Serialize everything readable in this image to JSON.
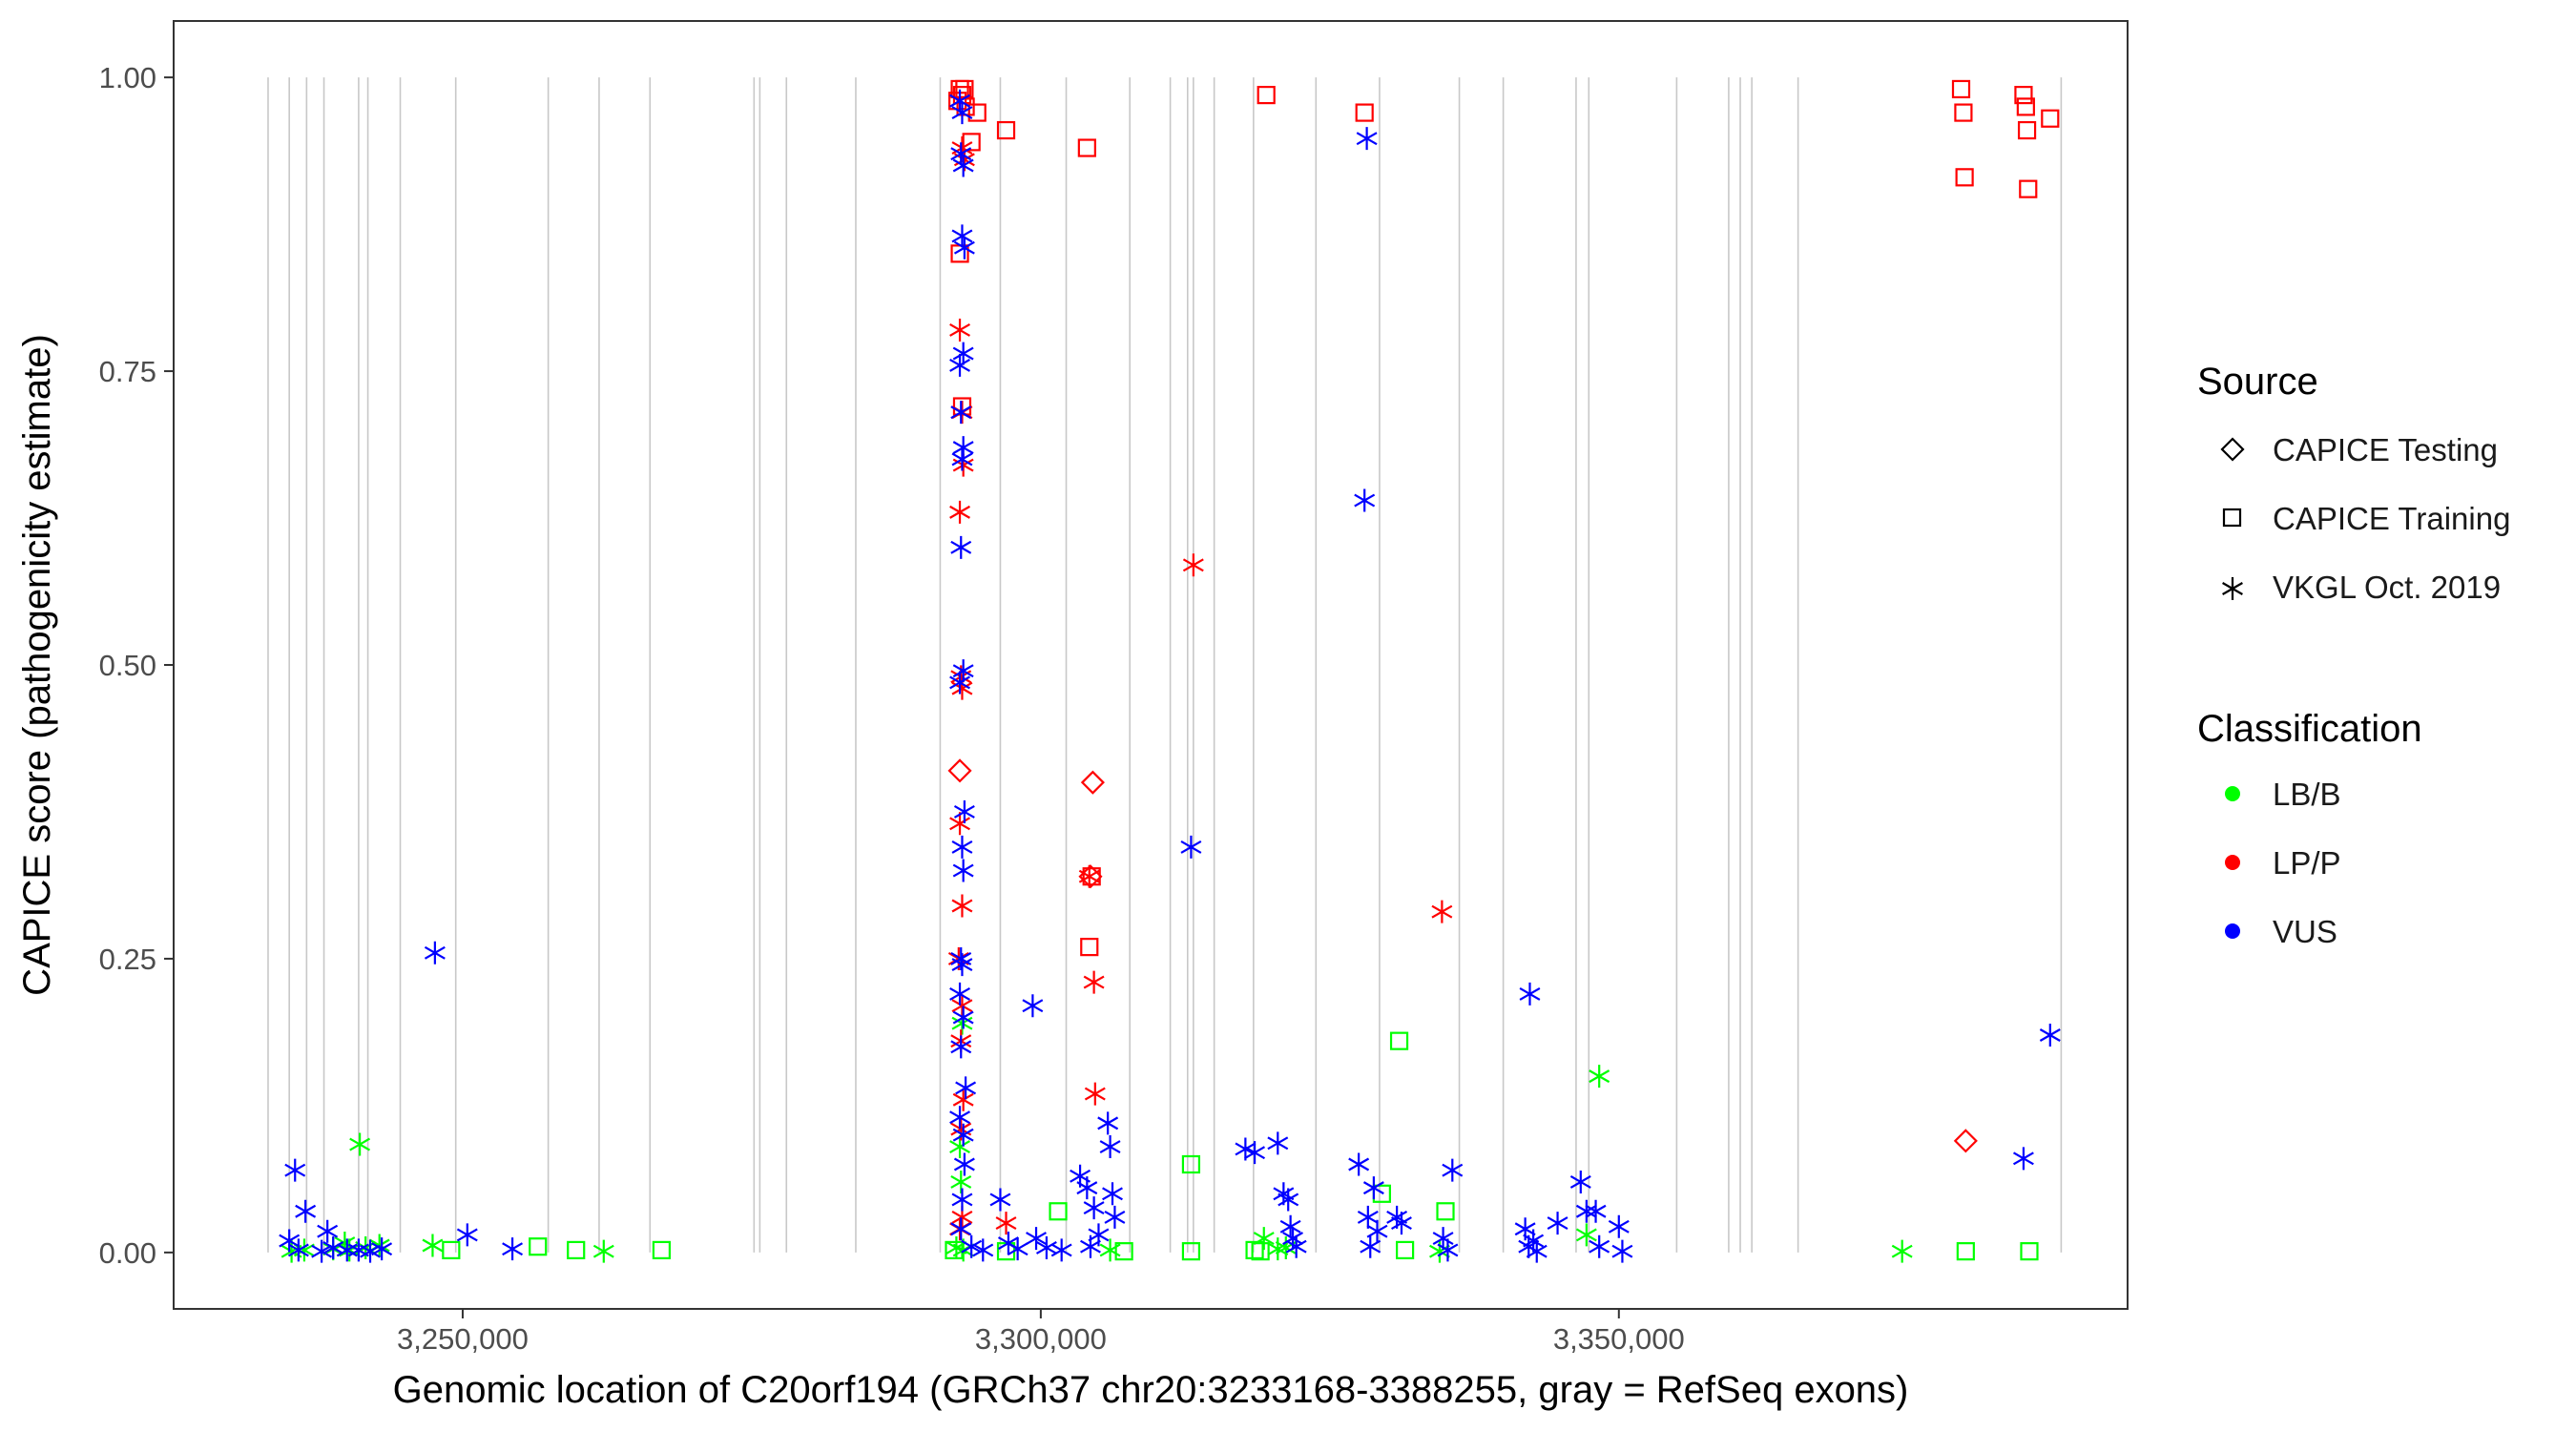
{
  "chart_data": {
    "type": "scatter",
    "title": "",
    "xlabel": "Genomic location of C20orf194 (GRCh37 chr20:3233168-3388255, gray = RefSeq exons)",
    "ylabel": "CAPICE score (pathogenicity estimate)",
    "xlim": [
      3225000,
      3394000
    ],
    "ylim": [
      -0.048,
      1.048
    ],
    "x_ticks": [
      3250000,
      3300000,
      3350000
    ],
    "x_tick_labels": [
      "3,250,000",
      "3,300,000",
      "3,350,000"
    ],
    "y_ticks": [
      0,
      0.25,
      0.5,
      0.75,
      1.0
    ],
    "y_tick_labels": [
      "0.00",
      "0.25",
      "0.50",
      "0.75",
      "1.00"
    ],
    "grid": false,
    "exons": [
      3233168,
      3235000,
      3236500,
      3238000,
      3241000,
      3241800,
      3244600,
      3249400,
      3257400,
      3261800,
      3266200,
      3275200,
      3275700,
      3278000,
      3284000,
      3291300,
      3296500,
      3302200,
      3307700,
      3311200,
      3312700,
      3313200,
      3315000,
      3318400,
      3323800,
      3329300,
      3336200,
      3340000,
      3346300,
      3347400,
      3355000,
      3359500,
      3360500,
      3361500,
      3365500,
      3388255
    ],
    "legend": {
      "position": "right",
      "source_title": "Source",
      "source_items": [
        {
          "label": "CAPICE Testing",
          "shape": "diamond"
        },
        {
          "label": "CAPICE Training",
          "shape": "square"
        },
        {
          "label": "VKGL Oct. 2019",
          "shape": "asterisk"
        }
      ],
      "class_title": "Classification",
      "class_items": [
        {
          "label": "LB/B",
          "color": "#00FF00"
        },
        {
          "label": "LP/P",
          "color": "#FF0000"
        },
        {
          "label": "VUS",
          "color": "#0000FF"
        }
      ]
    },
    "colors": {
      "LB/B": "#00FF00",
      "LP/P": "#FF0000",
      "VUS": "#0000FF"
    },
    "series": [
      {
        "source": "CAPICE Testing",
        "classification": "LP/P",
        "x": [
          3293000,
          3304500,
          3304300,
          3380000
        ],
        "y": [
          0.41,
          0.4,
          0.32,
          0.095
        ]
      },
      {
        "source": "CAPICE Training",
        "classification": "LP/P",
        "x": [
          3292800,
          3293000,
          3293200,
          3293400,
          3293500,
          3294000,
          3294500,
          3297000,
          3304000,
          3304200,
          3304400,
          3319500,
          3328000,
          3293000,
          3293200,
          3379600,
          3379800,
          3379900,
          3385000,
          3385200,
          3385300,
          3385400,
          3387300
        ],
        "y": [
          0.98,
          0.99,
          0.985,
          0.99,
          0.975,
          0.945,
          0.97,
          0.955,
          0.94,
          0.26,
          0.32,
          0.985,
          0.97,
          0.85,
          0.72,
          0.99,
          0.97,
          0.915,
          0.985,
          0.975,
          0.955,
          0.905,
          0.965
        ]
      },
      {
        "source": "CAPICE Training",
        "classification": "LB/B",
        "x": [
          3249000,
          3256500,
          3259800,
          3267200,
          3301500,
          3307200,
          3313000,
          3319000,
          3329500,
          3331000,
          3335000,
          3380000,
          3385500,
          3292500,
          3297000,
          3313000,
          3318500,
          3331500
        ],
        "y": [
          0.002,
          0.005,
          0.002,
          0.002,
          0.035,
          0.001,
          0.075,
          0.001,
          0.05,
          0.18,
          0.035,
          0.001,
          0.001,
          0.002,
          0.001,
          0.001,
          0.002,
          0.002
        ]
      },
      {
        "source": "VKGL Oct. 2019",
        "classification": "LB/B",
        "x": [
          3235200,
          3236300,
          3238800,
          3240200,
          3241100,
          3242800,
          3247400,
          3262200,
          3293000,
          3293200,
          3306000,
          3319300,
          3320500,
          3321200,
          3334500,
          3347200,
          3348300,
          3374500,
          3292700,
          3293100,
          3293300,
          3239800,
          3241600
        ],
        "y": [
          0.001,
          0.002,
          0.003,
          0.002,
          0.092,
          0.006,
          0.006,
          0.001,
          0.09,
          0.195,
          0.002,
          0.012,
          0.003,
          0.004,
          0.001,
          0.015,
          0.15,
          0.001,
          0.004,
          0.06,
          0.002,
          0.008,
          0.004
        ]
      },
      {
        "source": "VKGL Oct. 2019",
        "classification": "LP/P",
        "x": [
          3293000,
          3293200,
          3293300,
          3293000,
          3293100,
          3293200,
          3293000,
          3293200,
          3292900,
          3293200,
          3293100,
          3293300,
          3293100,
          3293200,
          3293000,
          3293400,
          3293200,
          3297000,
          3304200,
          3304600,
          3304700,
          3313200,
          3334700
        ],
        "y": [
          0.785,
          0.715,
          0.67,
          0.63,
          0.49,
          0.48,
          0.365,
          0.295,
          0.25,
          0.21,
          0.18,
          0.13,
          0.105,
          0.03,
          0.02,
          0.93,
          0.94,
          0.025,
          0.32,
          0.23,
          0.135,
          0.585,
          0.29
        ]
      },
      {
        "source": "VKGL Oct. 2019",
        "classification": "VUS",
        "x": [
          3235000,
          3235500,
          3235800,
          3236400,
          3237800,
          3238300,
          3238800,
          3240000,
          3241000,
          3242000,
          3243000,
          3247600,
          3250400,
          3254300,
          3293000,
          3293200,
          3293300,
          3293100,
          3293200,
          3293400,
          3293300,
          3293000,
          3293100,
          3293300,
          3293200,
          3293100,
          3293300,
          3293000,
          3293400,
          3293200,
          3293300,
          3293100,
          3293200,
          3293000,
          3293300,
          3293100,
          3293500,
          3293000,
          3293300,
          3293400,
          3293200,
          3293100,
          3294000,
          3295000,
          3296500,
          3297200,
          3298000,
          3299300,
          3299600,
          3300500,
          3301800,
          3303400,
          3304000,
          3304300,
          3304600,
          3305000,
          3305800,
          3306000,
          3306200,
          3306400,
          3313000,
          3317700,
          3318500,
          3320500,
          3321000,
          3321400,
          3321600,
          3321800,
          3322100,
          3327500,
          3328000,
          3328200,
          3328300,
          3328500,
          3328800,
          3329100,
          3330800,
          3331200,
          3334800,
          3335200,
          3335600,
          3341900,
          3342200,
          3342300,
          3342600,
          3342900,
          3344700,
          3346700,
          3347200,
          3348000,
          3348300,
          3350000,
          3350300,
          3385000,
          3387300
        ],
        "y": [
          0.01,
          0.07,
          0.002,
          0.035,
          0.001,
          0.018,
          0.004,
          0.002,
          0.002,
          0.001,
          0.003,
          0.255,
          0.015,
          0.003,
          0.98,
          0.97,
          0.925,
          0.935,
          0.865,
          0.855,
          0.765,
          0.755,
          0.715,
          0.685,
          0.675,
          0.6,
          0.495,
          0.485,
          0.375,
          0.345,
          0.325,
          0.25,
          0.245,
          0.22,
          0.2,
          0.175,
          0.14,
          0.115,
          0.1,
          0.075,
          0.045,
          0.02,
          0.005,
          0.002,
          0.045,
          0.008,
          0.003,
          0.21,
          0.012,
          0.004,
          0.002,
          0.065,
          0.055,
          0.005,
          0.038,
          0.015,
          0.11,
          0.09,
          0.05,
          0.03,
          0.345,
          0.088,
          0.085,
          0.093,
          0.05,
          0.045,
          0.022,
          0.012,
          0.005,
          0.075,
          0.64,
          0.948,
          0.03,
          0.005,
          0.055,
          0.018,
          0.03,
          0.025,
          0.012,
          0.002,
          0.07,
          0.02,
          0.005,
          0.22,
          0.01,
          0.001,
          0.025,
          0.06,
          0.035,
          0.035,
          0.005,
          0.022,
          0.001,
          0.08,
          0.185
        ]
      }
    ]
  }
}
